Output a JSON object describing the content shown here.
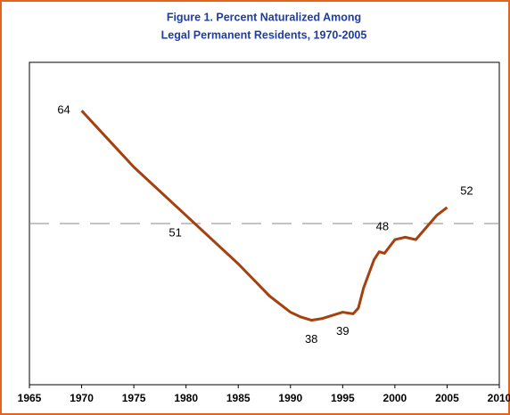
{
  "chart_data": {
    "type": "line",
    "title": "Figure 1.  Percent Naturalized Among",
    "subtitle": "Legal Permanent Residents, 1970-2005",
    "x": [
      1970,
      1975,
      1980,
      1985,
      1988,
      1990,
      1991,
      1992,
      1993,
      1994,
      1995,
      1996,
      1996.5,
      1997,
      1998,
      1998.5,
      1999,
      2000,
      2001,
      2002,
      2003,
      2004,
      2005
    ],
    "series": [
      {
        "name": "Percent naturalized",
        "color": "#a5400f",
        "values": [
          64,
          57,
          51,
          45,
          41,
          39,
          38.4,
          38,
          38.2,
          38.6,
          39,
          38.8,
          39.5,
          42,
          45.5,
          46.5,
          46.3,
          48,
          48.3,
          48,
          49.5,
          51,
          52
        ],
        "value_labels": [
          64,
          null,
          51,
          null,
          null,
          null,
          null,
          38,
          null,
          null,
          39,
          null,
          null,
          null,
          null,
          null,
          null,
          48,
          null,
          null,
          null,
          null,
          52
        ]
      }
    ],
    "reference_line": 50,
    "xlim": [
      1965,
      2010
    ],
    "xticks": [
      1965,
      1970,
      1975,
      1980,
      1985,
      1990,
      1995,
      2000,
      2005,
      2010
    ],
    "ylim": [
      30,
      70
    ]
  }
}
